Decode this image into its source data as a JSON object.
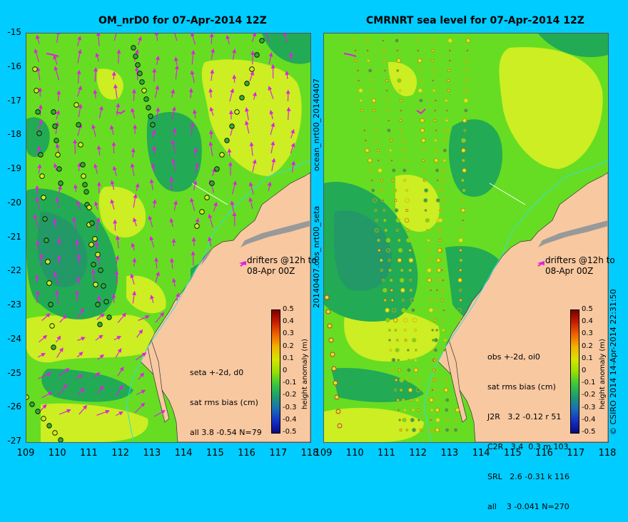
{
  "titles": {
    "left": "OM_nrD0 for 07-Apr-2014 12Z",
    "right": "CMRNRT sea level  for 07-Apr-2014 12Z"
  },
  "axes": {
    "lat_labels": [
      "-15",
      "-16",
      "-17",
      "-18",
      "-19",
      "-20",
      "-21",
      "-22",
      "-23",
      "-24",
      "-25",
      "-26",
      "-27"
    ],
    "lon_labels": [
      "109",
      "110",
      "111",
      "112",
      "113",
      "114",
      "115",
      "116",
      "117",
      "118"
    ],
    "lon_labels_right": [
      "109",
      "110",
      "111",
      "112",
      "113",
      "114",
      "115",
      "116",
      "117",
      "118"
    ]
  },
  "side_labels": {
    "top": "ocean_nrt00_20140407",
    "bottom": "20140407.obs_nrt00_seta",
    "credit": "© CSIRO 2014  14-Apr-2014 22:31:50"
  },
  "drifters_text": {
    "left": [
      "drifters @12h to",
      "08-Apr 00Z"
    ],
    "right": [
      "drifters @12h to",
      "08-Apr 00Z"
    ]
  },
  "stats_left": [
    "seta +-2d, d0",
    "sat rms bias (cm)",
    "all 3.8 -0.54 N=79"
  ],
  "stats_right": [
    "obs +-2d, oi0",
    "sat rms bias (cm)",
    "J2R   3.2 -0.12 r 51",
    "C2R   3.4  0.3 m 103",
    "SRL   2.6 -0.31 k 116",
    "all    3 -0.041 N=270"
  ],
  "colorbar": {
    "title": "height anomaly (m)",
    "ticks": [
      "0.5",
      "0.4",
      "0.3",
      "0.2",
      "0.1",
      "0",
      "-0.1",
      "-0.2",
      "-0.3",
      "-0.4",
      "-0.5"
    ],
    "colors": [
      "#7a0000",
      "#c81e00",
      "#f06400",
      "#f0b400",
      "#d8e400",
      "#9ae000",
      "#3cc83c",
      "#1e9e6e",
      "#1a70b4",
      "#1432c8",
      "#0a0a82"
    ]
  },
  "colors": {
    "background": "#00ccff",
    "land": "#f8c8a0",
    "sea_mid": "#66dd22",
    "sea_high": "#ccee22",
    "sea_low": "#22aa55",
    "sea_lower": "#229966",
    "arrow": "#dd22dd",
    "coast_shelf": "#999999"
  }
}
